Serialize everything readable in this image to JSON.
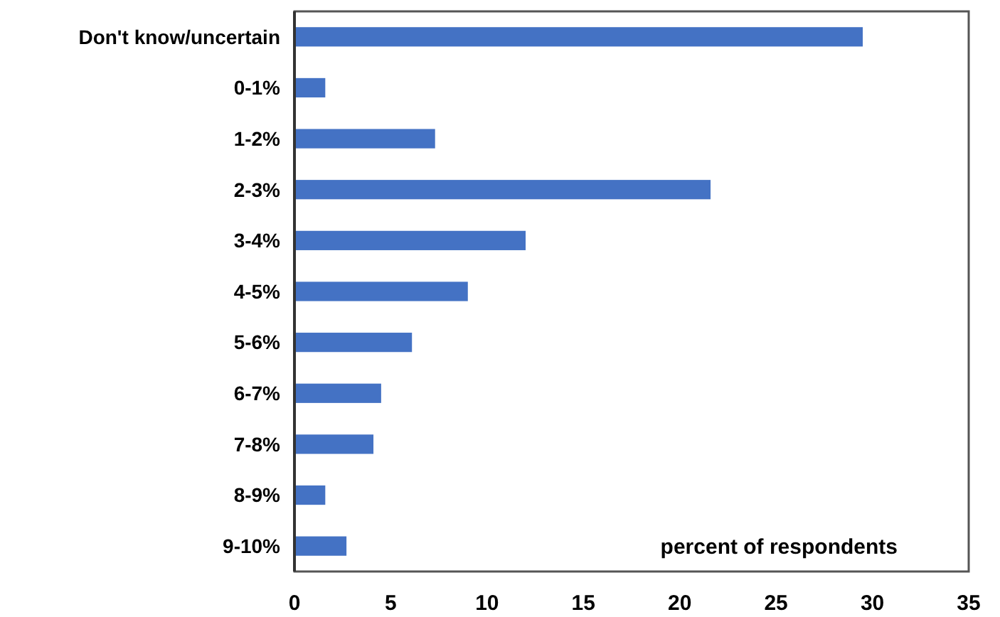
{
  "chart_data": {
    "type": "bar",
    "orientation": "horizontal",
    "xlabel": "percent of respondents",
    "categories": [
      "Don't know/uncertain",
      "0-1%",
      "1-2%",
      "2-3%",
      "3-4%",
      "4-5%",
      "5-6%",
      "6-7%",
      "7-8%",
      "8-9%",
      "9-10%"
    ],
    "values": [
      29.5,
      1.6,
      7.3,
      21.6,
      12.0,
      9.0,
      6.1,
      4.5,
      4.1,
      1.6,
      2.7
    ],
    "color": "#4472c4",
    "xlim": [
      0,
      35
    ],
    "xticks": [
      0,
      5,
      10,
      15,
      20,
      25,
      30,
      35
    ],
    "grid": false
  }
}
